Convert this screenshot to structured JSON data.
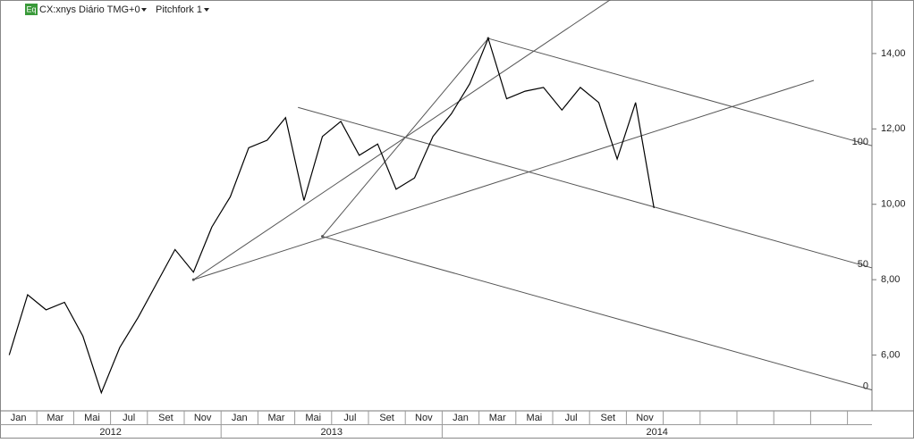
{
  "header": {
    "badge": "Eq",
    "symbol": "CX:xnys Diário TMG+0",
    "study": "Pitchfork 1"
  },
  "chart_data": {
    "type": "line",
    "color": "#000000",
    "x": [
      "2012-01",
      "2012-02",
      "2012-03",
      "2012-04",
      "2012-05",
      "2012-06",
      "2012-07",
      "2012-08",
      "2012-09",
      "2012-10",
      "2012-11",
      "2012-12",
      "2013-01",
      "2013-02",
      "2013-03",
      "2013-04",
      "2013-05",
      "2013-06",
      "2013-07",
      "2013-08",
      "2013-09",
      "2013-10",
      "2013-11",
      "2013-12",
      "2014-01",
      "2014-02",
      "2014-03",
      "2014-04",
      "2014-05",
      "2014-06",
      "2014-07",
      "2014-08",
      "2014-09",
      "2014-10",
      "2014-11",
      "2014-12"
    ],
    "values": [
      6.0,
      7.6,
      7.2,
      7.4,
      6.5,
      5.0,
      6.2,
      7.0,
      7.9,
      8.8,
      8.2,
      9.4,
      10.2,
      11.5,
      11.7,
      12.3,
      10.1,
      11.8,
      12.2,
      11.3,
      11.6,
      10.4,
      10.7,
      11.8,
      12.4,
      13.2,
      14.4,
      12.8,
      13.0,
      13.1,
      12.5,
      13.1,
      12.7,
      11.2,
      12.7,
      9.9
    ],
    "ylim": [
      4.52,
      15.42
    ],
    "yticks": [
      {
        "value": 6,
        "label": "6,00"
      },
      {
        "value": 8,
        "label": "8,00"
      },
      {
        "value": 10,
        "label": "10,00"
      },
      {
        "value": 12,
        "label": "12,00"
      },
      {
        "value": 14,
        "label": "14,00"
      }
    ],
    "month_labels": [
      "Jan",
      "Mar",
      "Mai",
      "Jul",
      "Set",
      "Nov",
      "Jan",
      "Mar",
      "Mai",
      "Jul",
      "Set",
      "Nov",
      "Jan",
      "Mar",
      "Mai",
      "Jul",
      "Set",
      "Nov"
    ],
    "year_labels": [
      "2012",
      "2013",
      "2014"
    ],
    "pitchfork": {
      "pivots": [
        {
          "x": "2012-11",
          "y": 8.0
        },
        {
          "x": "2014-03",
          "y": 14.4
        },
        {
          "x": "2013-06",
          "y": 9.15
        }
      ],
      "levels": [
        100,
        50,
        0
      ],
      "color": "#555555"
    }
  }
}
